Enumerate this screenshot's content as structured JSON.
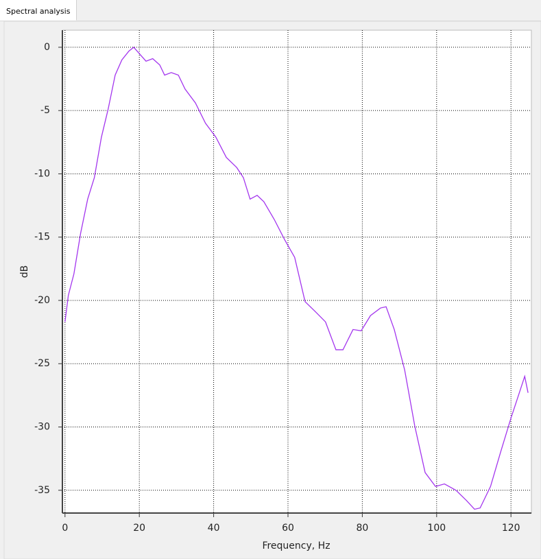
{
  "window": {
    "tab_title": "Spectral analysis"
  },
  "chart_data": {
    "type": "line",
    "xlabel": "Frequency, Hz",
    "ylabel": "dB",
    "color": "#a335ee",
    "x": [
      0,
      0.9,
      2.4,
      4.2,
      6.1,
      7.9,
      9.8,
      11.6,
      13.5,
      15.3,
      17.2,
      18.5,
      20,
      21.8,
      23.6,
      25.5,
      26.8,
      28.6,
      30.5,
      32.3,
      35.1,
      37.8,
      40.6,
      43.4,
      46.2,
      48.0,
      49.8,
      51.7,
      53.5,
      56.3,
      59.1,
      61.8,
      64.6,
      67.4,
      70.1,
      72.9,
      74.8,
      77.5,
      79.7,
      82.2,
      84.9,
      86.4,
      88.6,
      91.4,
      94.1,
      96.9,
      99.7,
      102.1,
      105.2,
      108.0,
      110.2,
      111.7,
      114.5,
      117.2,
      120.0,
      121.8,
      123.7,
      124.6
    ],
    "values": [
      -21.7,
      -19.6,
      -17.9,
      -14.7,
      -12.0,
      -10.3,
      -7.1,
      -4.9,
      -2.2,
      -1.0,
      -0.3,
      0,
      -0.5,
      -1.1,
      -0.9,
      -1.4,
      -2.2,
      -2.0,
      -2.2,
      -3.3,
      -4.4,
      -6.0,
      -7.1,
      -8.7,
      -9.5,
      -10.3,
      -12.0,
      -11.7,
      -12.2,
      -13.6,
      -15.2,
      -16.6,
      -20.1,
      -20.9,
      -21.7,
      -23.9,
      -23.9,
      -22.3,
      -22.4,
      -21.2,
      -20.6,
      -20.5,
      -22.3,
      -25.5,
      -29.9,
      -33.6,
      -34.7,
      -34.5,
      -35.0,
      -35.8,
      -36.5,
      -36.4,
      -34.7,
      -32.0,
      -29.3,
      -27.7,
      -26.0,
      -27.3
    ],
    "xlim": [
      -0.7,
      125.5
    ],
    "ylim": [
      -36.8,
      1.35
    ],
    "xticks": [
      0,
      20,
      40,
      60,
      80,
      100,
      120
    ],
    "yticks": [
      0,
      -5,
      -10,
      -15,
      -20,
      -25,
      -30,
      -35
    ],
    "grid": true
  }
}
